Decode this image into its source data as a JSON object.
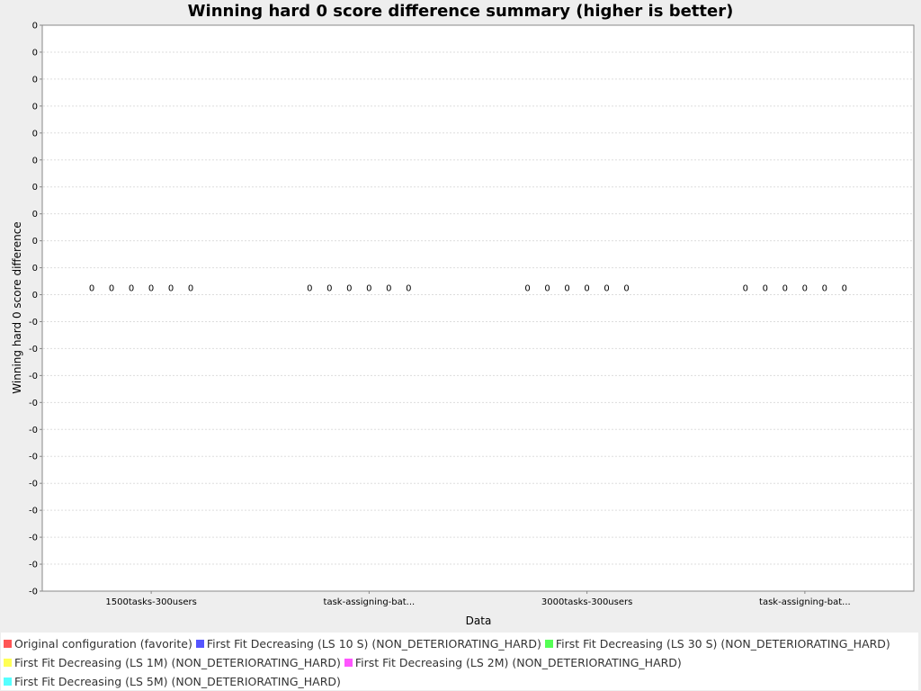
{
  "chart_data": {
    "type": "bar",
    "title": "Winning hard 0 score difference summary (higher is better)",
    "xlabel": "Data",
    "ylabel": "Winning hard 0 score difference",
    "y_tick_labels": [
      "0",
      "0",
      "0",
      "0",
      "0",
      "0",
      "0",
      "0",
      "0",
      "0",
      "0",
      "-0",
      "-0",
      "-0",
      "-0",
      "-0",
      "-0",
      "-0",
      "-0",
      "-0",
      "-0",
      "-0"
    ],
    "categories": [
      "1500tasks-300users",
      "task-assigning-bat...",
      "3000tasks-300users",
      "task-assigning-bat..."
    ],
    "series": [
      {
        "name": "Original configuration (favorite)",
        "color": "#ff5555",
        "values": [
          0,
          0,
          0,
          0
        ],
        "value_labels": [
          "0",
          "0",
          "0",
          "0"
        ]
      },
      {
        "name": "First Fit Decreasing (LS 10 S) (NON_DETERIORATING_HARD)",
        "color": "#5555ff",
        "values": [
          0,
          0,
          0,
          0
        ],
        "value_labels": [
          "0",
          "0",
          "0",
          "0"
        ]
      },
      {
        "name": "First Fit Decreasing (LS 30 S) (NON_DETERIORATING_HARD)",
        "color": "#55ff55",
        "values": [
          0,
          0,
          0,
          0
        ],
        "value_labels": [
          "0",
          "0",
          "0",
          "0"
        ]
      },
      {
        "name": "First Fit Decreasing (LS 1M) (NON_DETERIORATING_HARD)",
        "color": "#ffff55",
        "values": [
          0,
          0,
          0,
          0
        ],
        "value_labels": [
          "0",
          "0",
          "0",
          "0"
        ]
      },
      {
        "name": "First Fit Decreasing (LS 2M) (NON_DETERIORATING_HARD)",
        "color": "#ff55ff",
        "values": [
          0,
          0,
          0,
          0
        ],
        "value_labels": [
          "0",
          "0",
          "0",
          "0"
        ]
      },
      {
        "name": "First Fit Decreasing (LS 5M) (NON_DETERIORATING_HARD)",
        "color": "#55ffff",
        "values": [
          0,
          0,
          0,
          0
        ],
        "value_labels": [
          "0",
          "0",
          "0",
          "0"
        ]
      }
    ],
    "grid": true,
    "legend_position": "bottom"
  }
}
